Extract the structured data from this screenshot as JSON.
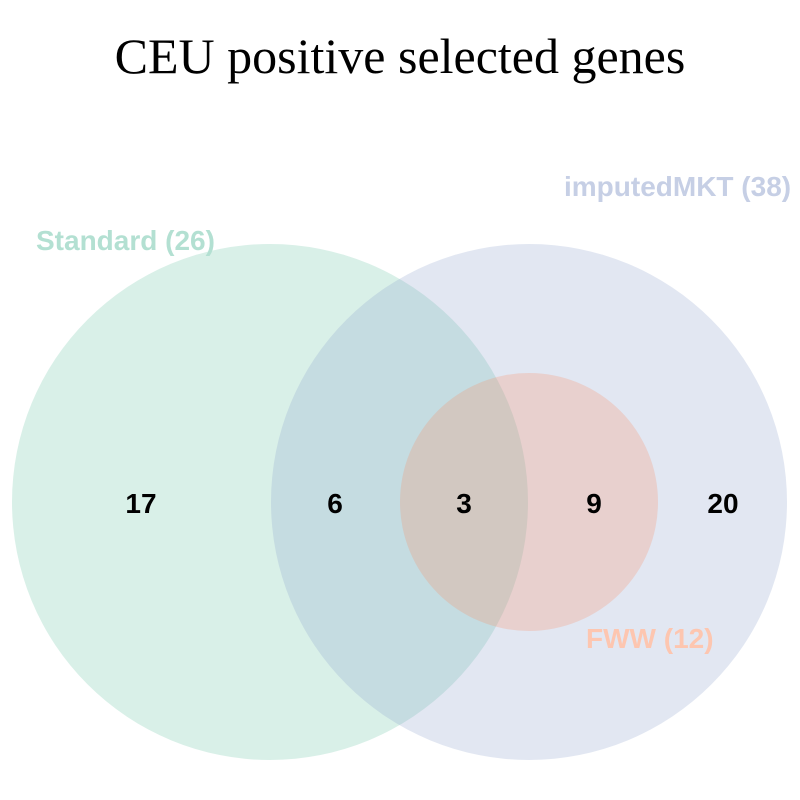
{
  "title": "CEU positive selected genes",
  "sets": [
    {
      "label": "Standard (26)",
      "fill": "#66c2a5",
      "fill_opacity": 0.25,
      "label_color": "#b3e0d2"
    },
    {
      "label": "imputedMKT (38)",
      "fill": "#8da0cb",
      "fill_opacity": 0.25,
      "label_color": "#c6cfe5"
    },
    {
      "label": "FWW (12)",
      "fill": "#fc8d62",
      "fill_opacity": 0.25,
      "label_color": "#fdc6b0"
    }
  ],
  "regions": [
    {
      "id": "standard-only",
      "value": "17"
    },
    {
      "id": "standard-imputedmkt",
      "value": "6"
    },
    {
      "id": "standard-imputedmkt-fww",
      "value": "3"
    },
    {
      "id": "imputedmkt-fww",
      "value": "9"
    },
    {
      "id": "imputedmkt-only",
      "value": "20"
    }
  ]
}
